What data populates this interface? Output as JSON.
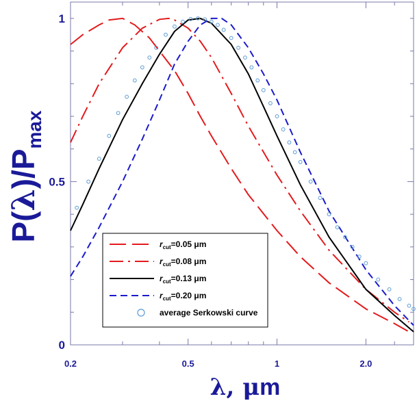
{
  "colors": {
    "axis": "#7777aa",
    "label": "#1a1a99",
    "red": "#e31a1c",
    "black": "#000000",
    "blue": "#1a1acc",
    "circle": "#5b9bd5"
  },
  "labels": {
    "ylabel_main": "P(",
    "ylabel_lambda": "λ",
    "ylabel_close": ")/P",
    "ylabel_sub": "max",
    "xlabel_lambda": "λ",
    "xlabel_rest": ", ",
    "xlabel_mu": "μ",
    "xlabel_m": "m"
  },
  "chart_data": {
    "type": "line",
    "xscale": "log",
    "xlim": [
      0.2,
      2.9
    ],
    "ylim": [
      0,
      1.05
    ],
    "xticks": [
      {
        "value": 0.2,
        "label": "0.2"
      },
      {
        "value": 0.5,
        "label": "0.5"
      },
      {
        "value": 1.0,
        "label": "1"
      },
      {
        "value": 2.0,
        "label": "2.0"
      }
    ],
    "yticks": [
      {
        "value": 0,
        "label": "0"
      },
      {
        "value": 0.5,
        "label": "0.5"
      },
      {
        "value": 1.0,
        "label": "1"
      }
    ],
    "grid": false,
    "legend_position": "lower-left",
    "series": [
      {
        "name_prefix": "r",
        "name_sub": "cut",
        "name_suffix": "=0.05 μm",
        "style": "long-dash",
        "color": "#e31a1c",
        "x": [
          0.2,
          0.22,
          0.25,
          0.27,
          0.3,
          0.33,
          0.37,
          0.4,
          0.45,
          0.5,
          0.55,
          0.6,
          0.7,
          0.8,
          1.0,
          1.2,
          1.5,
          2.0,
          2.5,
          2.8
        ],
        "y": [
          0.92,
          0.95,
          0.98,
          0.995,
          1.0,
          0.98,
          0.94,
          0.9,
          0.84,
          0.77,
          0.7,
          0.64,
          0.54,
          0.46,
          0.35,
          0.27,
          0.19,
          0.11,
          0.065,
          0.04
        ]
      },
      {
        "name_prefix": "r",
        "name_sub": "cut",
        "name_suffix": "=0.08 μm",
        "style": "dash-dot",
        "color": "#e31a1c",
        "x": [
          0.2,
          0.22,
          0.25,
          0.3,
          0.35,
          0.4,
          0.43,
          0.45,
          0.5,
          0.55,
          0.6,
          0.7,
          0.8,
          1.0,
          1.2,
          1.5,
          2.0,
          2.5,
          2.8
        ],
        "y": [
          0.62,
          0.7,
          0.8,
          0.91,
          0.97,
          0.997,
          1.0,
          0.995,
          0.97,
          0.93,
          0.88,
          0.77,
          0.67,
          0.52,
          0.41,
          0.29,
          0.17,
          0.1,
          0.07
        ]
      },
      {
        "name_prefix": "r",
        "name_sub": "cut",
        "name_suffix": "=0.13 μm",
        "style": "solid",
        "color": "#000000",
        "x": [
          0.2,
          0.22,
          0.25,
          0.3,
          0.35,
          0.4,
          0.45,
          0.5,
          0.55,
          0.6,
          0.7,
          0.8,
          0.9,
          1.0,
          1.2,
          1.5,
          2.0,
          2.5,
          2.9
        ],
        "y": [
          0.35,
          0.43,
          0.54,
          0.69,
          0.8,
          0.89,
          0.96,
          0.995,
          1.0,
          0.985,
          0.92,
          0.83,
          0.73,
          0.64,
          0.49,
          0.33,
          0.17,
          0.09,
          0.04
        ]
      },
      {
        "name_prefix": "r",
        "name_sub": "cut",
        "name_suffix": "=0.20 μm",
        "style": "short-dash",
        "color": "#1a1acc",
        "x": [
          0.2,
          0.22,
          0.25,
          0.3,
          0.35,
          0.4,
          0.45,
          0.5,
          0.55,
          0.6,
          0.65,
          0.7,
          0.8,
          0.9,
          1.0,
          1.2,
          1.5,
          2.0,
          2.5,
          2.9
        ],
        "y": [
          0.21,
          0.27,
          0.36,
          0.5,
          0.63,
          0.75,
          0.86,
          0.93,
          0.98,
          1.0,
          1.0,
          0.98,
          0.91,
          0.83,
          0.75,
          0.59,
          0.41,
          0.23,
          0.12,
          0.06
        ]
      },
      {
        "name": "average Serkowski curve",
        "style": "circles",
        "color": "#5b9bd5",
        "x": [
          0.21,
          0.23,
          0.25,
          0.27,
          0.29,
          0.31,
          0.33,
          0.35,
          0.37,
          0.39,
          0.42,
          0.45,
          0.48,
          0.51,
          0.54,
          0.57,
          0.6,
          0.63,
          0.66,
          0.7,
          0.74,
          0.78,
          0.82,
          0.86,
          0.9,
          0.95,
          1.0,
          1.05,
          1.1,
          1.15,
          1.2,
          1.3,
          1.4,
          1.5,
          1.6,
          1.7,
          1.8,
          1.9,
          2.0,
          2.2,
          2.4,
          2.6,
          2.8,
          2.9
        ],
        "y": [
          0.42,
          0.5,
          0.57,
          0.64,
          0.71,
          0.76,
          0.81,
          0.85,
          0.88,
          0.91,
          0.95,
          0.975,
          0.99,
          0.998,
          1.0,
          0.997,
          0.99,
          0.98,
          0.965,
          0.94,
          0.91,
          0.88,
          0.85,
          0.81,
          0.78,
          0.74,
          0.7,
          0.66,
          0.62,
          0.59,
          0.56,
          0.5,
          0.45,
          0.4,
          0.36,
          0.33,
          0.3,
          0.27,
          0.25,
          0.2,
          0.17,
          0.14,
          0.12,
          0.11
        ]
      }
    ]
  }
}
